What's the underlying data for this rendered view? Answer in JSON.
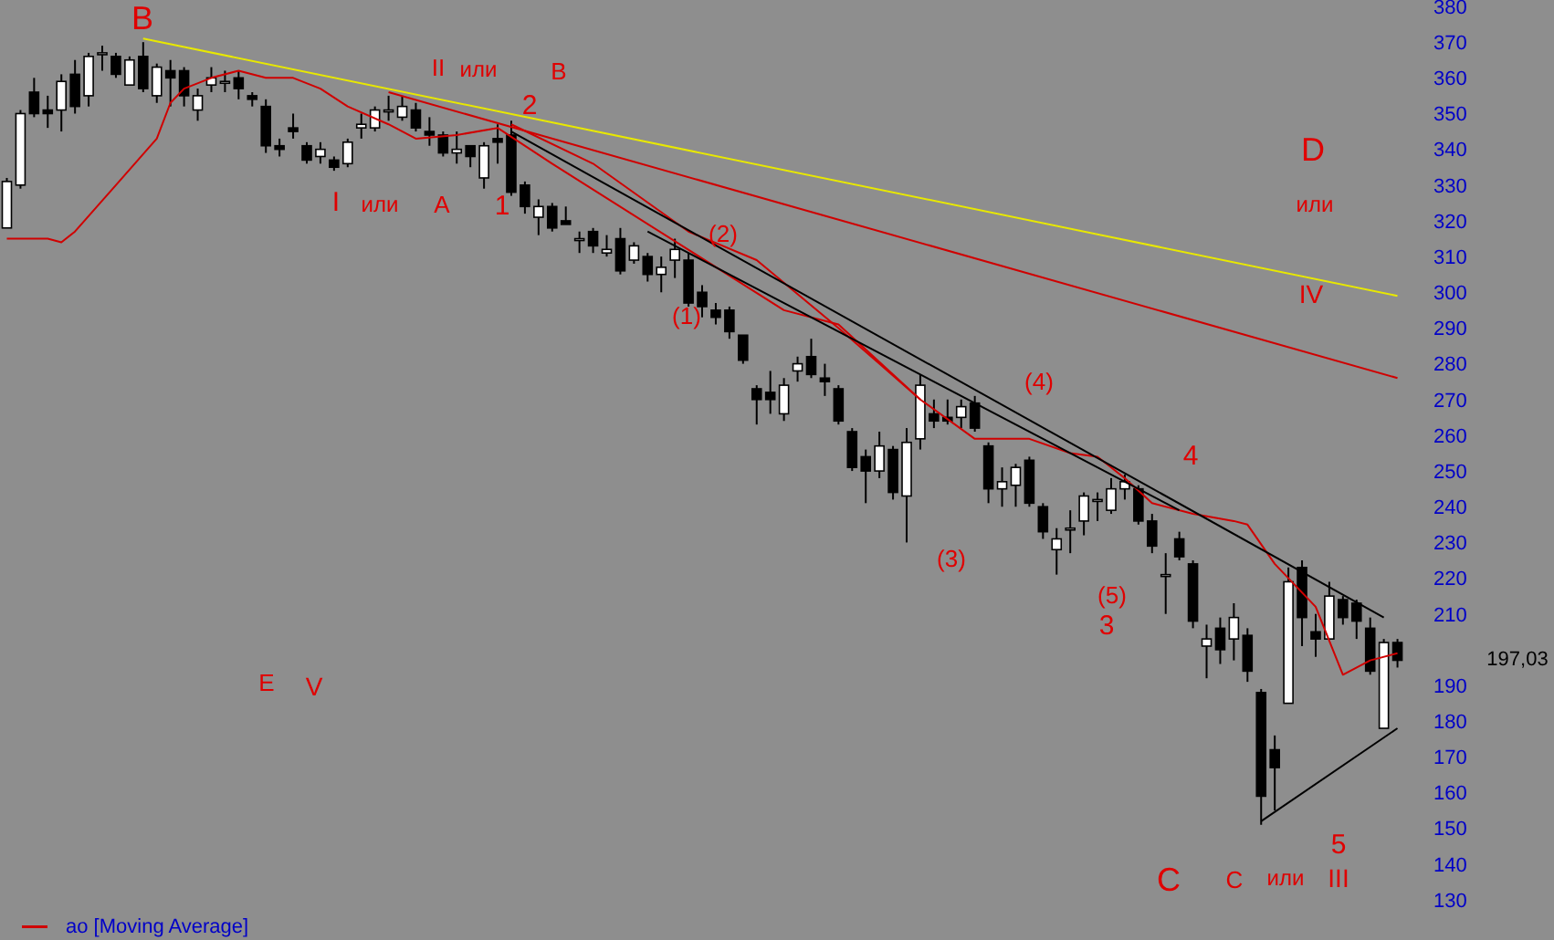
{
  "chart_data": {
    "type": "candlestick",
    "categories": [
      null,
      null,
      null,
      null,
      null,
      null,
      null,
      null,
      null,
      null,
      null,
      null,
      null,
      null,
      null,
      null,
      null,
      null,
      null,
      null,
      null,
      null,
      null,
      null,
      null,
      null,
      null,
      null,
      null,
      null,
      null,
      null,
      null,
      null,
      null,
      null,
      null,
      null,
      null,
      null,
      null,
      null,
      null,
      null,
      null,
      null,
      null,
      null,
      null,
      null,
      null,
      null,
      null,
      null,
      null,
      null,
      null,
      null,
      null,
      null,
      null,
      null,
      null,
      null,
      null,
      null,
      null,
      null,
      null,
      null,
      null,
      null,
      null,
      null,
      null,
      null,
      null,
      null,
      null,
      null,
      null,
      null,
      null,
      null,
      null,
      null,
      null,
      null,
      null,
      null,
      null,
      null,
      null,
      null,
      null,
      null,
      null,
      null,
      null,
      null,
      null,
      null,
      null
    ],
    "ohlc": [
      [
        318,
        332,
        318,
        331
      ],
      [
        330,
        351,
        329,
        350
      ],
      [
        356,
        360,
        349,
        350
      ],
      [
        351,
        355,
        346,
        350
      ],
      [
        351,
        361,
        345,
        359
      ],
      [
        361,
        365,
        350,
        352
      ],
      [
        355,
        367,
        352,
        366
      ],
      [
        367,
        369,
        362,
        367
      ],
      [
        366,
        367,
        360,
        361
      ],
      [
        358,
        366,
        358,
        365
      ],
      [
        366,
        370,
        356,
        357
      ],
      [
        355,
        364,
        353,
        363
      ],
      [
        362,
        365,
        352,
        360
      ],
      [
        362,
        363,
        352,
        355
      ],
      [
        351,
        357,
        348,
        355
      ],
      [
        358,
        363,
        356,
        360
      ],
      [
        359,
        362,
        356,
        359
      ],
      [
        360,
        362,
        354,
        357
      ],
      [
        355,
        356,
        352,
        354
      ],
      [
        352,
        354,
        339,
        341
      ],
      [
        341,
        343,
        338,
        340
      ],
      [
        346,
        350,
        343,
        345
      ],
      [
        341,
        342,
        336,
        337
      ],
      [
        338,
        342,
        336,
        340
      ],
      [
        337,
        338,
        334,
        335
      ],
      [
        336,
        343,
        335,
        342
      ],
      [
        346,
        350,
        343,
        347
      ],
      [
        346,
        352,
        345,
        351
      ],
      [
        351,
        355,
        348,
        351
      ],
      [
        349,
        355,
        348,
        352
      ],
      [
        351,
        353,
        345,
        346
      ],
      [
        345,
        349,
        341,
        344
      ],
      [
        344,
        345,
        338,
        339
      ],
      [
        339,
        345,
        336,
        340
      ],
      [
        341,
        341,
        335,
        338
      ],
      [
        332,
        342,
        329,
        341
      ],
      [
        343,
        347,
        336,
        342
      ],
      [
        344,
        348,
        327,
        328
      ],
      [
        330,
        331,
        322,
        324
      ],
      [
        321,
        326,
        316,
        324
      ],
      [
        324,
        325,
        317,
        318
      ],
      [
        320,
        324,
        319,
        319
      ],
      [
        315,
        317,
        311,
        315
      ],
      [
        317,
        318,
        311,
        313
      ],
      [
        311,
        316,
        310,
        312
      ],
      [
        315,
        318,
        305,
        306
      ],
      [
        309,
        314,
        308,
        313
      ],
      [
        310,
        311,
        303,
        305
      ],
      [
        305,
        310,
        300,
        307
      ],
      [
        309,
        315,
        304,
        312
      ],
      [
        309,
        311,
        296,
        297
      ],
      [
        300,
        302,
        293,
        296
      ],
      [
        295,
        297,
        291,
        293
      ],
      [
        295,
        296,
        287,
        289
      ],
      [
        288,
        288,
        280,
        281
      ],
      [
        273,
        274,
        263,
        270
      ],
      [
        272,
        278,
        266,
        270
      ],
      [
        266,
        276,
        264,
        274
      ],
      [
        278,
        282,
        275,
        280
      ],
      [
        282,
        287,
        276,
        277
      ],
      [
        276,
        280,
        271,
        275
      ],
      [
        273,
        274,
        263,
        264
      ],
      [
        261,
        262,
        250,
        251
      ],
      [
        254,
        256,
        241,
        250
      ],
      [
        250,
        261,
        248,
        257
      ],
      [
        256,
        257,
        242,
        244
      ],
      [
        243,
        262,
        230,
        258
      ],
      [
        259,
        277,
        256,
        274
      ],
      [
        266,
        270,
        262,
        264
      ],
      [
        265,
        270,
        263,
        264
      ],
      [
        265,
        270,
        262,
        268
      ],
      [
        269,
        271,
        261,
        262
      ],
      [
        257,
        258,
        241,
        245
      ],
      [
        245,
        251,
        240,
        247
      ],
      [
        246,
        252,
        240,
        251
      ],
      [
        253,
        254,
        240,
        241
      ],
      [
        240,
        241,
        231,
        233
      ],
      [
        228,
        234,
        221,
        231
      ],
      [
        234,
        239,
        227,
        234
      ],
      [
        236,
        244,
        232,
        243
      ],
      [
        242,
        244,
        236,
        242
      ],
      [
        239,
        248,
        238,
        245
      ],
      [
        245,
        249,
        242,
        247
      ],
      [
        245,
        246,
        235,
        236
      ],
      [
        236,
        238,
        227,
        229
      ],
      [
        221,
        227,
        210,
        221
      ],
      [
        231,
        233,
        225,
        226
      ],
      [
        224,
        225,
        206,
        208
      ],
      [
        201,
        207,
        192,
        203
      ],
      [
        206,
        209,
        196,
        200
      ],
      [
        203,
        213,
        197,
        209
      ],
      [
        204,
        206,
        191,
        194
      ],
      [
        188,
        189,
        151,
        159
      ],
      [
        172,
        176,
        155,
        167
      ],
      [
        185,
        223,
        185,
        219
      ],
      [
        223,
        225,
        201,
        209
      ],
      [
        205,
        210,
        198,
        203
      ],
      [
        203,
        219,
        203,
        215
      ],
      [
        214,
        215,
        207,
        209
      ],
      [
        213,
        214,
        203,
        208
      ],
      [
        206,
        209,
        193,
        194
      ],
      [
        178,
        203,
        178,
        202
      ],
      [
        202,
        203,
        195,
        197.03
      ]
    ],
    "series": [
      {
        "type": "line",
        "name": "ао [Moving Average]",
        "color": "#d00000",
        "values": [
          315,
          null,
          null,
          315,
          314,
          317,
          null,
          null,
          330,
          null,
          null,
          343,
          353,
          357,
          null,
          360,
          null,
          362,
          null,
          360,
          null,
          360,
          null,
          357,
          null,
          352,
          null,
          null,
          347,
          null,
          343,
          null,
          null,
          344,
          null,
          null,
          346,
          null,
          null,
          null,
          336,
          null,
          null,
          null,
          null,
          null,
          null,
          null,
          null,
          null,
          null,
          null,
          null,
          null,
          null,
          null,
          null,
          295,
          null,
          null,
          null,
          291,
          null,
          null,
          null,
          null,
          null,
          270,
          null,
          null,
          null,
          259,
          null,
          null,
          null,
          259,
          null,
          null,
          255,
          null,
          254,
          null,
          248,
          null,
          241,
          null,
          null,
          238,
          null,
          null,
          236,
          235,
          null,
          224,
          null,
          null,
          212,
          null,
          193,
          null,
          197,
          null,
          199
        ]
      },
      {
        "type": "line",
        "color": "#d00000",
        "values": [
          null,
          null,
          null,
          null,
          null,
          null,
          null,
          null,
          null,
          null,
          null,
          null,
          null,
          null,
          null,
          null,
          null,
          null,
          null,
          null,
          null,
          null,
          null,
          null,
          null,
          null,
          null,
          null,
          null,
          null,
          null,
          null,
          null,
          null,
          null,
          null,
          null,
          347,
          null,
          null,
          null,
          null,
          null,
          336,
          null,
          null,
          null,
          null,
          null,
          null,
          317,
          null,
          null,
          null,
          null,
          309,
          null,
          null,
          null,
          null,
          null,
          290,
          null,
          null,
          280,
          null,
          null,
          270,
          null,
          null,
          null,
          null,
          null,
          null,
          null,
          null,
          null,
          null,
          null,
          null,
          null,
          null,
          null,
          null,
          null,
          null,
          null,
          null,
          null,
          null,
          null,
          null,
          null,
          null,
          null,
          null,
          null,
          null,
          null,
          null,
          null,
          null,
          null
        ]
      },
      {
        "type": "line",
        "color": "#e8e800",
        "values": [
          null,
          null,
          null,
          null,
          null,
          null,
          null,
          null,
          null,
          null,
          371,
          null,
          null,
          null,
          null,
          null,
          null,
          null,
          null,
          null,
          null,
          null,
          null,
          null,
          null,
          null,
          null,
          null,
          null,
          null,
          null,
          null,
          null,
          null,
          null,
          null,
          null,
          null,
          null,
          null,
          null,
          null,
          null,
          null,
          null,
          null,
          null,
          null,
          null,
          null,
          null,
          null,
          null,
          null,
          null,
          null,
          null,
          null,
          null,
          null,
          null,
          null,
          null,
          null,
          null,
          null,
          null,
          null,
          null,
          null,
          null,
          null,
          null,
          null,
          null,
          null,
          null,
          null,
          null,
          null,
          null,
          null,
          null,
          null,
          null,
          null,
          null,
          null,
          null,
          null,
          null,
          null,
          null,
          null,
          null,
          null,
          null,
          null,
          null,
          null,
          null,
          null,
          299
        ]
      },
      {
        "type": "line",
        "color": "#d00000",
        "values": [
          null,
          null,
          null,
          null,
          null,
          null,
          null,
          null,
          null,
          null,
          null,
          null,
          null,
          null,
          null,
          null,
          null,
          null,
          null,
          null,
          null,
          null,
          null,
          null,
          null,
          null,
          null,
          null,
          356,
          null,
          null,
          null,
          null,
          null,
          null,
          null,
          null,
          null,
          null,
          null,
          null,
          null,
          null,
          null,
          null,
          null,
          null,
          null,
          null,
          null,
          null,
          null,
          null,
          null,
          null,
          null,
          null,
          null,
          null,
          null,
          null,
          null,
          null,
          null,
          null,
          null,
          null,
          null,
          null,
          null,
          null,
          null,
          null,
          null,
          null,
          null,
          null,
          null,
          null,
          null,
          null,
          null,
          null,
          null,
          null,
          null,
          null,
          null,
          null,
          null,
          null,
          null,
          null,
          null,
          null,
          null,
          null,
          null,
          null,
          null,
          null,
          null,
          276
        ]
      },
      {
        "type": "line",
        "color": "#000000",
        "values": [
          null,
          null,
          null,
          null,
          null,
          null,
          null,
          null,
          null,
          null,
          null,
          null,
          null,
          null,
          null,
          null,
          null,
          null,
          null,
          null,
          null,
          null,
          null,
          null,
          null,
          null,
          null,
          null,
          null,
          null,
          null,
          null,
          null,
          null,
          null,
          null,
          null,
          345,
          null,
          null,
          null,
          null,
          null,
          null,
          null,
          null,
          null,
          null,
          null,
          null,
          null,
          null,
          null,
          null,
          null,
          null,
          null,
          null,
          null,
          null,
          null,
          null,
          null,
          null,
          null,
          null,
          null,
          null,
          null,
          null,
          null,
          null,
          null,
          null,
          null,
          null,
          null,
          null,
          null,
          null,
          null,
          null,
          null,
          null,
          null,
          null,
          null,
          null,
          null,
          null,
          null,
          null,
          null,
          null,
          null,
          null,
          null,
          null,
          null,
          null,
          null,
          209,
          null
        ]
      },
      {
        "type": "line",
        "color": "#000000",
        "values": [
          null,
          null,
          null,
          null,
          null,
          null,
          null,
          null,
          null,
          null,
          null,
          null,
          null,
          null,
          null,
          null,
          null,
          null,
          null,
          null,
          null,
          null,
          null,
          null,
          null,
          null,
          null,
          null,
          null,
          null,
          null,
          null,
          null,
          null,
          null,
          null,
          null,
          null,
          null,
          null,
          null,
          null,
          null,
          null,
          null,
          null,
          null,
          317,
          null,
          null,
          null,
          null,
          null,
          null,
          null,
          null,
          null,
          null,
          null,
          null,
          null,
          null,
          null,
          null,
          null,
          null,
          null,
          null,
          null,
          null,
          null,
          null,
          null,
          null,
          null,
          null,
          null,
          null,
          null,
          null,
          null,
          null,
          null,
          null,
          null,
          null,
          239,
          null,
          null,
          null,
          null,
          null,
          null,
          null,
          null,
          null,
          null,
          null,
          null,
          null,
          null,
          null,
          null
        ]
      },
      {
        "type": "line",
        "color": "#000000",
        "values": [
          null,
          null,
          null,
          null,
          null,
          null,
          null,
          null,
          null,
          null,
          null,
          null,
          null,
          null,
          null,
          null,
          null,
          null,
          null,
          null,
          null,
          null,
          null,
          null,
          null,
          null,
          null,
          null,
          null,
          null,
          null,
          null,
          null,
          null,
          null,
          null,
          null,
          null,
          null,
          null,
          null,
          null,
          null,
          null,
          null,
          null,
          null,
          null,
          null,
          null,
          null,
          null,
          null,
          null,
          null,
          null,
          null,
          null,
          null,
          null,
          null,
          null,
          null,
          null,
          null,
          null,
          null,
          null,
          null,
          null,
          null,
          null,
          null,
          null,
          null,
          null,
          null,
          null,
          null,
          null,
          null,
          null,
          null,
          null,
          null,
          null,
          null,
          null,
          null,
          null,
          null,
          null,
          152,
          null,
          null,
          null,
          null,
          null,
          null,
          null,
          null,
          null,
          178
        ]
      }
    ],
    "annotations": [
      "B",
      "II",
      "или",
      "B",
      "2",
      "I",
      "или",
      "A",
      "1",
      "(2)",
      "(1)",
      "(4)",
      "4",
      "(3)",
      "(5)",
      "3",
      "5",
      "D",
      "или",
      "IV",
      "E",
      "V",
      "C",
      "C",
      "или",
      "III",
      "197,03"
    ],
    "ylim": [
      130,
      380
    ],
    "yticks": [
      130,
      140,
      150,
      160,
      170,
      180,
      190,
      210,
      220,
      230,
      240,
      250,
      260,
      270,
      280,
      290,
      300,
      310,
      320,
      330,
      340,
      350,
      360,
      370,
      380
    ],
    "tick_labels": "y",
    "legend": "bottom left",
    "marker": "none"
  }
}
